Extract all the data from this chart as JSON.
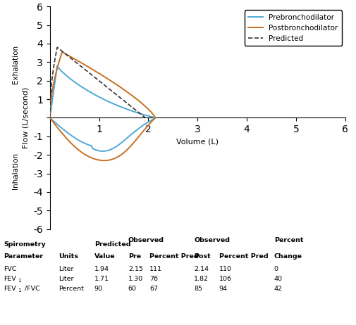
{
  "xlabel": "Volume (L)",
  "ylabel": "Flow (L/second)",
  "xlim": [
    0,
    6
  ],
  "ylim": [
    -6,
    6
  ],
  "xticks": [
    1,
    2,
    3,
    4,
    5,
    6
  ],
  "yticks": [
    -6,
    -5,
    -4,
    -3,
    -2,
    -1,
    0,
    1,
    2,
    3,
    4,
    5,
    6
  ],
  "pre_color": "#4fa8d5",
  "post_color": "#c87020",
  "pred_color": "#333333",
  "legend_labels": [
    "Prebronchodilator",
    "Postbronchodilator",
    "Predicted"
  ],
  "exhalation_label": "Exhalation",
  "inhalation_label": "Inhalation",
  "table_rows": [
    [
      "FVC",
      "Liter",
      "1.94",
      "2.15",
      "111",
      "2.14",
      "110",
      "0"
    ],
    [
      "FEV1",
      "Liter",
      "1.71",
      "1.30",
      "76",
      "1.82",
      "106",
      "40"
    ],
    [
      "FEV1/FVC",
      "Percent",
      "90",
      "60",
      "67",
      "85",
      "94",
      "42"
    ]
  ]
}
